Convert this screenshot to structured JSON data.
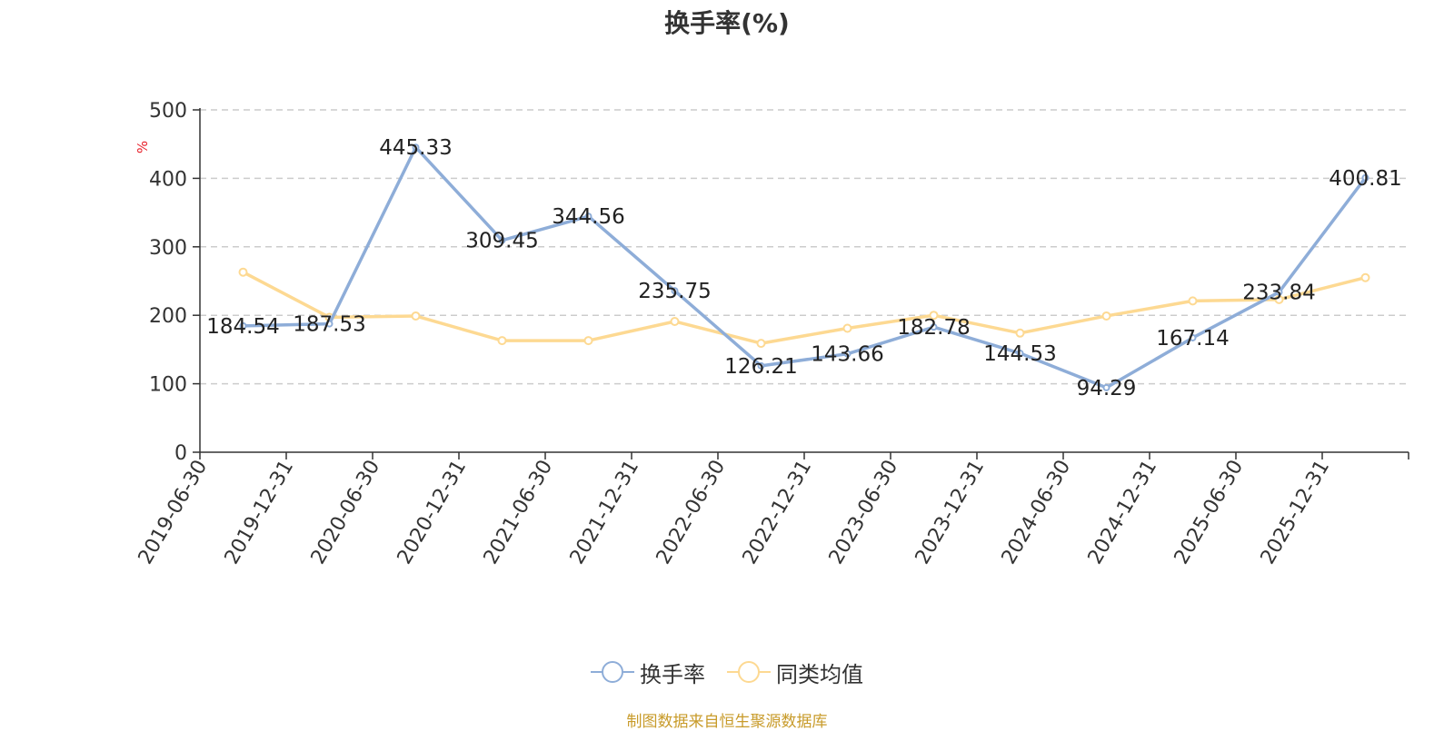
{
  "title": "换手率(%)",
  "source": "制图数据来自恒生聚源数据库",
  "legend": {
    "items": [
      {
        "label": "换手率",
        "color": "#8eadd8"
      },
      {
        "label": "同类均值",
        "color": "#fdd992"
      }
    ]
  },
  "chart_data": {
    "type": "line",
    "ylabel": "%",
    "ylim": [
      0,
      500
    ],
    "yticks": [
      0,
      100,
      200,
      300,
      400,
      500
    ],
    "grid": true,
    "legend_position": "bottom",
    "categories": [
      "2019-06-30",
      "2019-12-31",
      "2020-06-30",
      "2020-12-31",
      "2021-06-30",
      "2021-12-31",
      "2022-06-30",
      "2022-12-31",
      "2023-06-30",
      "2023-12-31",
      "2024-06-30",
      "2024-12-31",
      "2025-06-30",
      "2025-12-31"
    ],
    "series": [
      {
        "name": "换手率",
        "color": "#8eadd8",
        "values": [
          184.54,
          187.53,
          445.33,
          309.45,
          344.56,
          235.75,
          126.21,
          143.66,
          182.78,
          144.53,
          94.29,
          167.14,
          233.84,
          400.81
        ],
        "labels": [
          "184.54",
          "187.53",
          "445.33",
          "309.45",
          "344.56",
          "235.75",
          "126.21",
          "143.66",
          "182.78",
          "144.53",
          "94.29",
          "167.14",
          "233.84",
          "400.81"
        ]
      },
      {
        "name": "同类均值",
        "color": "#fdd992",
        "values": [
          263,
          197,
          199,
          163,
          163,
          191,
          159,
          181,
          200,
          174,
          199,
          221,
          223,
          255
        ]
      }
    ]
  }
}
